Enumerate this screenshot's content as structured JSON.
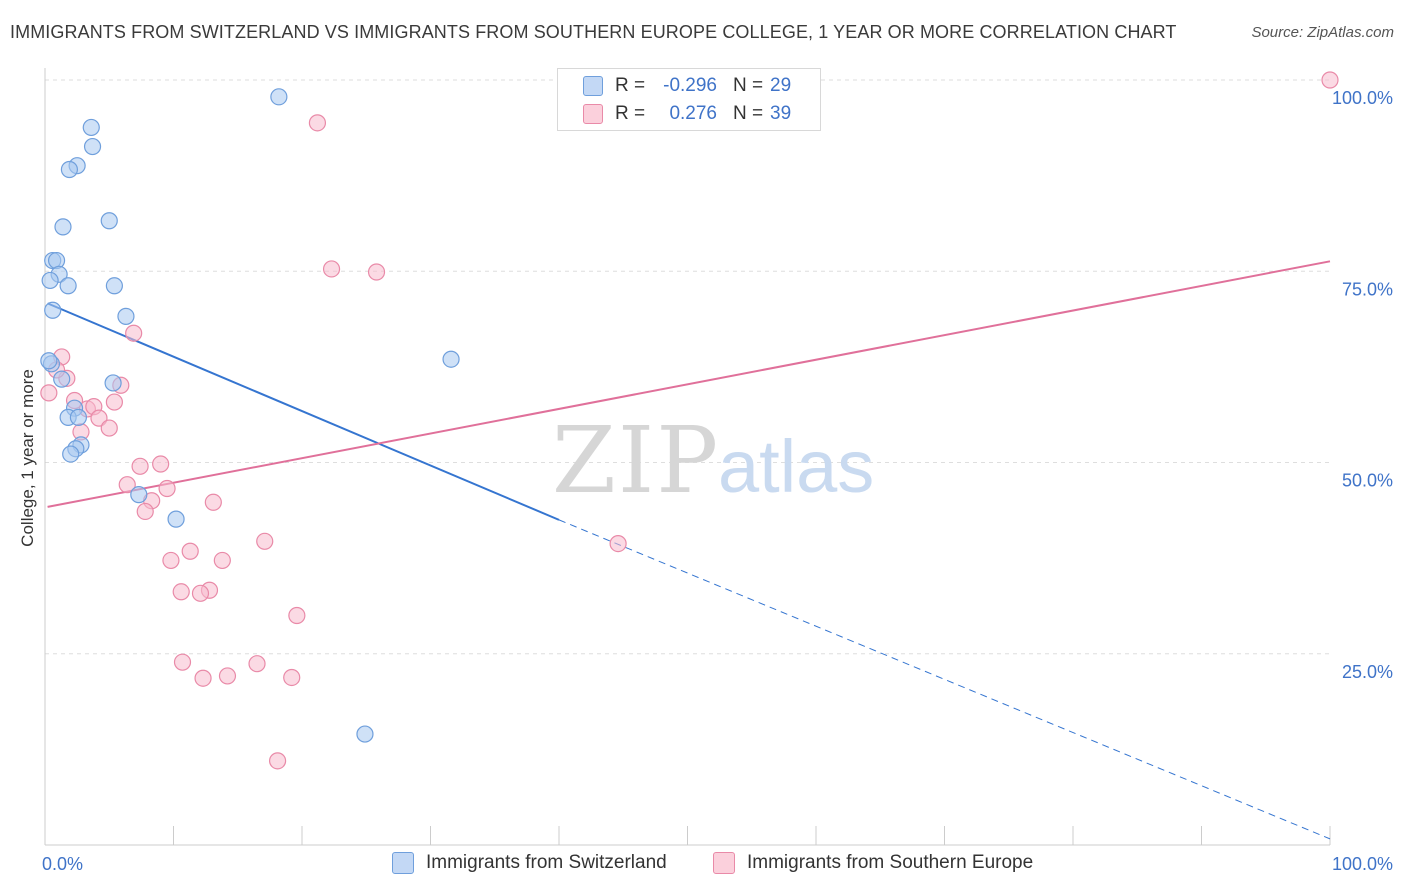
{
  "chart_data": {
    "type": "scatter",
    "title": "IMMIGRANTS FROM SWITZERLAND VS IMMIGRANTS FROM SOUTHERN EUROPE COLLEGE, 1 YEAR OR MORE CORRELATION CHART",
    "source": "Source: ZipAtlas.com",
    "xlabel": "",
    "ylabel": "College, 1 year or more",
    "xlim": [
      0,
      100
    ],
    "ylim": [
      0,
      100
    ],
    "x_tick_labels": [
      "0.0%",
      "100.0%"
    ],
    "y_tick_labels": [
      "25.0%",
      "50.0%",
      "75.0%",
      "100.0%"
    ],
    "y_ticks": [
      25,
      50,
      75,
      100
    ],
    "grid": true,
    "legend_placement": "top-center",
    "watermark": {
      "zip": "ZIP",
      "atlas": "atlas"
    },
    "series": [
      {
        "name": "Immigrants from Switzerland",
        "color": "#a8c8f0",
        "edge_color": "#6f9fdc",
        "line_color": "#3575d0",
        "R_label": "R =",
        "R": "-0.296",
        "N_label": "N =",
        "N": "29",
        "trend": {
          "x0": 0.2,
          "y0": 70.8,
          "x1": 40.0,
          "y1": 42.5,
          "dash_x1": 100.0,
          "dash_y1": 0.8
        },
        "points": [
          {
            "x": 18.2,
            "y": 97.8
          },
          {
            "x": 3.6,
            "y": 93.8
          },
          {
            "x": 3.7,
            "y": 91.3
          },
          {
            "x": 2.5,
            "y": 88.8
          },
          {
            "x": 1.9,
            "y": 88.3
          },
          {
            "x": 5.0,
            "y": 81.6
          },
          {
            "x": 1.4,
            "y": 80.8
          },
          {
            "x": 0.6,
            "y": 76.4
          },
          {
            "x": 0.9,
            "y": 76.4
          },
          {
            "x": 1.1,
            "y": 74.6
          },
          {
            "x": 0.4,
            "y": 73.8
          },
          {
            "x": 1.8,
            "y": 73.1
          },
          {
            "x": 5.4,
            "y": 73.1
          },
          {
            "x": 0.6,
            "y": 69.9
          },
          {
            "x": 6.3,
            "y": 69.1
          },
          {
            "x": 31.6,
            "y": 63.5
          },
          {
            "x": 0.5,
            "y": 62.9
          },
          {
            "x": 1.3,
            "y": 60.9
          },
          {
            "x": 5.3,
            "y": 60.4
          },
          {
            "x": 2.3,
            "y": 57.1
          },
          {
            "x": 1.8,
            "y": 55.9
          },
          {
            "x": 2.6,
            "y": 55.9
          },
          {
            "x": 2.8,
            "y": 52.3
          },
          {
            "x": 2.4,
            "y": 51.8
          },
          {
            "x": 2.0,
            "y": 51.1
          },
          {
            "x": 7.3,
            "y": 45.8
          },
          {
            "x": 10.2,
            "y": 42.6
          },
          {
            "x": 24.9,
            "y": 14.5
          },
          {
            "x": 0.3,
            "y": 63.3
          }
        ]
      },
      {
        "name": "Immigrants from Southern Europe",
        "color": "#f7bccd",
        "edge_color": "#e98aa8",
        "line_color": "#e0709a",
        "R_label": "R =",
        "R": "0.276",
        "N_label": "N =",
        "N": "39",
        "trend": {
          "x0": 0.2,
          "y0": 44.2,
          "x1": 100.0,
          "y1": 76.3
        },
        "points": [
          {
            "x": 100.0,
            "y": 100.0
          },
          {
            "x": 21.2,
            "y": 94.4
          },
          {
            "x": 22.3,
            "y": 75.3
          },
          {
            "x": 25.8,
            "y": 74.9
          },
          {
            "x": 6.9,
            "y": 66.9
          },
          {
            "x": 1.3,
            "y": 63.8
          },
          {
            "x": 1.7,
            "y": 61.0
          },
          {
            "x": 5.9,
            "y": 60.1
          },
          {
            "x": 0.9,
            "y": 62.1
          },
          {
            "x": 2.3,
            "y": 58.1
          },
          {
            "x": 5.4,
            "y": 57.9
          },
          {
            "x": 3.3,
            "y": 57.0
          },
          {
            "x": 3.8,
            "y": 57.3
          },
          {
            "x": 4.2,
            "y": 55.8
          },
          {
            "x": 5.0,
            "y": 54.5
          },
          {
            "x": 2.8,
            "y": 54.0
          },
          {
            "x": 0.3,
            "y": 59.1
          },
          {
            "x": 7.4,
            "y": 49.5
          },
          {
            "x": 9.0,
            "y": 49.8
          },
          {
            "x": 6.4,
            "y": 47.1
          },
          {
            "x": 9.5,
            "y": 46.6
          },
          {
            "x": 8.3,
            "y": 45.0
          },
          {
            "x": 13.1,
            "y": 44.8
          },
          {
            "x": 7.8,
            "y": 43.6
          },
          {
            "x": 17.1,
            "y": 39.7
          },
          {
            "x": 44.6,
            "y": 39.4
          },
          {
            "x": 11.3,
            "y": 38.4
          },
          {
            "x": 9.8,
            "y": 37.2
          },
          {
            "x": 13.8,
            "y": 37.2
          },
          {
            "x": 10.6,
            "y": 33.1
          },
          {
            "x": 12.8,
            "y": 33.3
          },
          {
            "x": 12.1,
            "y": 32.9
          },
          {
            "x": 19.6,
            "y": 30.0
          },
          {
            "x": 10.7,
            "y": 23.9
          },
          {
            "x": 16.5,
            "y": 23.7
          },
          {
            "x": 12.3,
            "y": 21.8
          },
          {
            "x": 14.2,
            "y": 22.1
          },
          {
            "x": 19.2,
            "y": 21.9
          },
          {
            "x": 18.1,
            "y": 11.0
          }
        ]
      }
    ]
  }
}
